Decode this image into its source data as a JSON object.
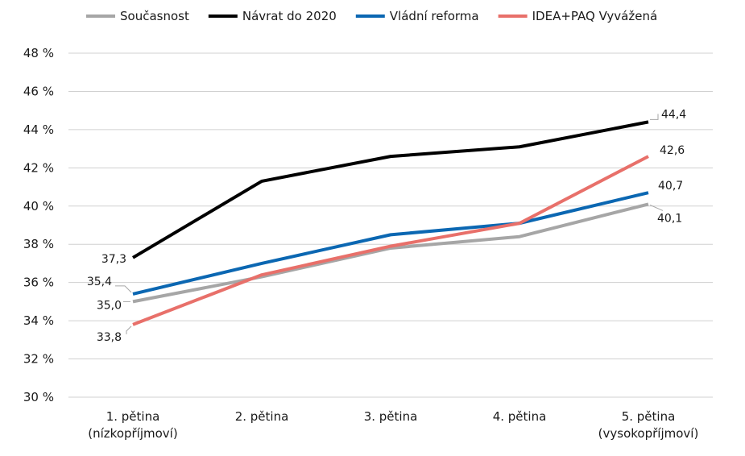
{
  "chart_data": {
    "type": "line",
    "categories": [
      [
        "1. pětina",
        "(nízkopříjmoví)"
      ],
      [
        "2. pětina"
      ],
      [
        "3. pětina"
      ],
      [
        "4. pětina"
      ],
      [
        "5. pětina",
        "(vysokopříjmoví)"
      ]
    ],
    "ylim": [
      30,
      48
    ],
    "yticks": [
      30,
      32,
      34,
      36,
      38,
      40,
      42,
      44,
      46,
      48
    ],
    "ytick_labels": [
      "30 %",
      "32 %",
      "34 %",
      "36 %",
      "38 %",
      "40 %",
      "42 %",
      "44 %",
      "46 %",
      "48 %"
    ],
    "grid": true,
    "legend_position": "top",
    "series": [
      {
        "name": "Současnost",
        "color": "#a6a6a6",
        "values": [
          35.0,
          36.3,
          37.8,
          38.4,
          40.1
        ],
        "labels": [
          "35,0",
          "",
          "",
          "",
          "40,1"
        ]
      },
      {
        "name": "Návrat do 2020",
        "color": "#000000",
        "values": [
          37.3,
          41.3,
          42.6,
          43.1,
          44.4
        ],
        "labels": [
          "37,3",
          "",
          "",
          "",
          "44,4"
        ]
      },
      {
        "name": "Vládní reforma",
        "color": "#0b67b2",
        "values": [
          35.4,
          37.0,
          38.5,
          39.1,
          40.7
        ],
        "labels": [
          "35,4",
          "",
          "",
          "",
          "40,7"
        ]
      },
      {
        "name": "IDEA+PAQ Vyvážená",
        "color": "#e8706a",
        "values": [
          33.8,
          36.4,
          37.9,
          39.1,
          42.6
        ],
        "labels": [
          "33,8",
          "",
          "",
          "",
          "42,6"
        ]
      }
    ]
  }
}
